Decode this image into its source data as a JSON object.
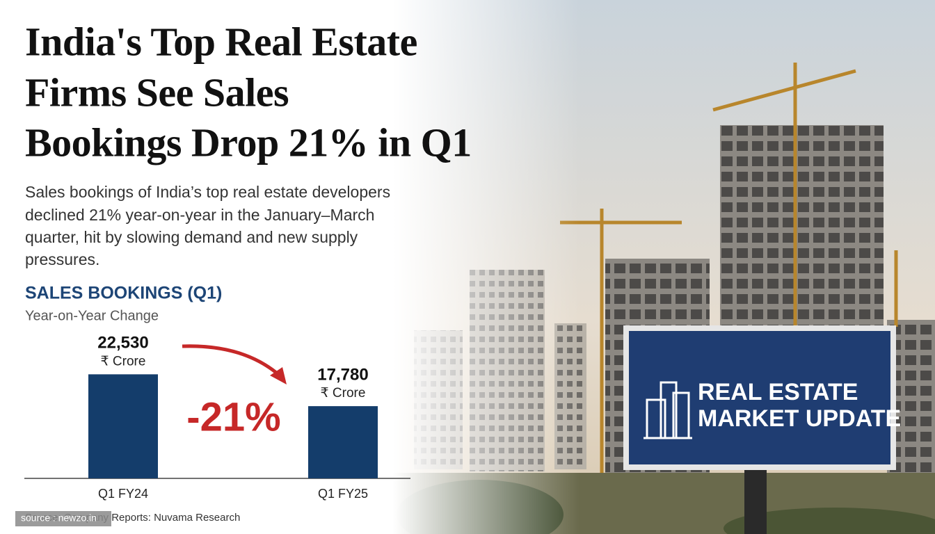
{
  "headline_lines": [
    "India's Top Real Estate",
    "Firms See Sales",
    "Bookings Drop 21% in Q1"
  ],
  "description_lines": [
    "Sales bookings of India’s top real estate developers",
    "declined 21% year-on-year in the January–March",
    "quarter, hit by slowing demand and new supply",
    "pressures."
  ],
  "billboard_lines": [
    "REAL ESTATE",
    "MARKET UPDATE"
  ],
  "source": "Source: Company Reports: Nuvama Research",
  "watermark": "source : newzo.in",
  "chart_data": {
    "type": "bar",
    "title": "SALES BOOKINGS (Q1)",
    "subtitle": "Year-on-Year Change",
    "categories": [
      "Q1 FY24",
      "Q1 FY25"
    ],
    "values": [
      22530,
      17780
    ],
    "value_labels": [
      "22,530",
      "17,780"
    ],
    "unit": "₹ Crore",
    "annotation": "-21%",
    "color": "#143d6b",
    "annotation_color": "#c62828",
    "ylim": [
      7000,
      23500
    ]
  }
}
